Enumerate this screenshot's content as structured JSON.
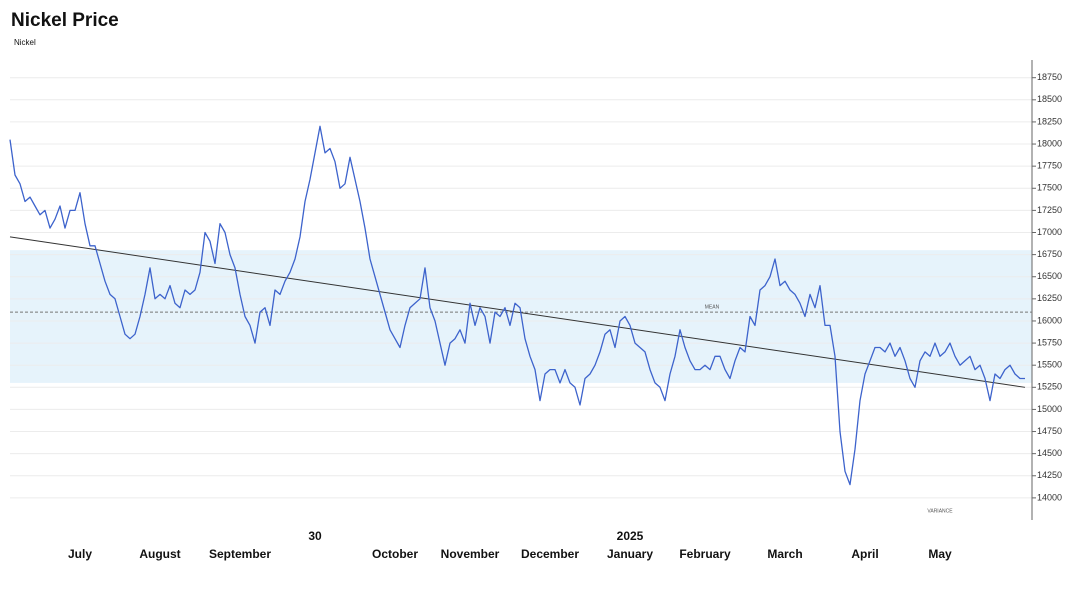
{
  "chart_data": {
    "type": "line",
    "title": "Nickel Price",
    "series": [
      {
        "name": "Nickel",
        "color": "#3d63cc",
        "values": [
          18050,
          17650,
          17550,
          17350,
          17400,
          17300,
          17200,
          17250,
          17050,
          17150,
          17300,
          17050,
          17250,
          17250,
          17450,
          17100,
          16850,
          16850,
          16650,
          16450,
          16300,
          16250,
          16050,
          15850,
          15800,
          15850,
          16050,
          16300,
          16600,
          16250,
          16300,
          16250,
          16400,
          16200,
          16150,
          16350,
          16300,
          16350,
          16550,
          17000,
          16900,
          16650,
          17100,
          17000,
          16750,
          16600,
          16300,
          16050,
          15950,
          15750,
          16100,
          16150,
          15950,
          16350,
          16300,
          16450,
          16550,
          16700,
          16950,
          17350,
          17600,
          17900,
          18200,
          17900,
          17950,
          17800,
          17500,
          17550,
          17850,
          17600,
          17350,
          17050,
          16700,
          16500,
          16300,
          16100,
          15900,
          15800,
          15700,
          15950,
          16150,
          16200,
          16250,
          16600,
          16150,
          16000,
          15750,
          15500,
          15750,
          15800,
          15900,
          15750,
          16200,
          15950,
          16150,
          16050,
          15750,
          16100,
          16050,
          16150,
          15950,
          16200,
          16150,
          15800,
          15600,
          15450,
          15100,
          15400,
          15450,
          15450,
          15300,
          15450,
          15300,
          15250,
          15050,
          15350,
          15400,
          15500,
          15650,
          15850,
          15900,
          15700,
          16000,
          16050,
          15950,
          15750,
          15700,
          15650,
          15450,
          15300,
          15250,
          15100,
          15400,
          15600,
          15900,
          15700,
          15550,
          15450,
          15450,
          15500,
          15450,
          15600,
          15600,
          15450,
          15350,
          15550,
          15700,
          15650,
          16050,
          15950,
          16350,
          16400,
          16500,
          16700,
          16400,
          16450,
          16350,
          16300,
          16200,
          16050,
          16300,
          16150,
          16400,
          15950,
          15950,
          15600,
          14750,
          14300,
          14150,
          14550,
          15100,
          15400,
          15550,
          15700,
          15700,
          15650,
          15750,
          15600,
          15700,
          15550,
          15350,
          15250,
          15550,
          15650,
          15600,
          15750,
          15600,
          15650,
          15750,
          15600,
          15500,
          15550,
          15600,
          15450,
          15500,
          15350,
          15100,
          15400,
          15350,
          15450,
          15500,
          15400,
          15350,
          15350
        ]
      }
    ],
    "categories": [
      null,
      null,
      null,
      null,
      null,
      null,
      null,
      null,
      null,
      null,
      null,
      null,
      null,
      null,
      "July",
      null,
      null,
      null,
      null,
      null,
      null,
      null,
      null,
      null,
      null,
      null,
      null,
      null,
      null,
      null,
      "August",
      null,
      null,
      null,
      null,
      null,
      null,
      null,
      null,
      null,
      null,
      null,
      null,
      null,
      null,
      null,
      "September",
      null,
      null,
      null,
      null,
      null,
      null,
      null,
      null,
      null,
      null,
      null,
      null,
      null,
      null,
      null,
      null,
      null,
      null,
      null,
      null,
      null,
      null,
      null,
      null,
      null,
      null,
      null,
      null,
      null,
      null,
      "October",
      null,
      null,
      null,
      null,
      null,
      null,
      null,
      null,
      null,
      null,
      null,
      null,
      null,
      null,
      "November",
      null,
      null,
      null,
      null,
      null,
      null,
      null,
      null,
      null,
      null,
      null,
      null,
      null,
      null,
      null,
      "December",
      null,
      null,
      null,
      null,
      null,
      null,
      null,
      null,
      null,
      null,
      null,
      null,
      null,
      null,
      null,
      "January",
      null,
      null,
      null,
      null,
      null,
      null,
      null,
      null,
      null,
      null,
      null,
      null,
      null,
      null,
      "February",
      null,
      null,
      null,
      null,
      null,
      null,
      null,
      null,
      null,
      null,
      null,
      null,
      null,
      null,
      null,
      "March",
      null,
      null,
      null,
      null,
      null,
      null,
      null,
      null,
      null,
      null,
      null,
      null,
      null,
      null,
      null,
      "April",
      null,
      null,
      null,
      null,
      null,
      null,
      null,
      null,
      null,
      null,
      null,
      null,
      null,
      null,
      "May",
      null,
      null,
      null,
      null,
      null,
      null,
      null,
      null,
      null,
      null,
      null,
      null,
      null,
      null,
      null,
      null,
      null
    ],
    "upper_categories": [
      null,
      null,
      null,
      null,
      null,
      null,
      null,
      null,
      null,
      null,
      null,
      null,
      null,
      null,
      null,
      null,
      null,
      null,
      null,
      null,
      null,
      null,
      null,
      null,
      null,
      null,
      null,
      null,
      null,
      null,
      null,
      null,
      null,
      null,
      null,
      null,
      null,
      null,
      null,
      null,
      null,
      null,
      null,
      null,
      null,
      null,
      null,
      null,
      null,
      null,
      null,
      null,
      null,
      null,
      null,
      null,
      null,
      null,
      null,
      null,
      null,
      "30",
      null,
      null,
      null,
      null,
      null,
      null,
      null,
      null,
      null,
      null,
      null,
      null,
      null,
      null,
      null,
      null,
      null,
      null,
      null,
      null,
      null,
      null,
      null,
      null,
      null,
      null,
      null,
      null,
      null,
      null,
      null,
      null,
      null,
      null,
      null,
      null,
      null,
      null,
      null,
      null,
      null,
      null,
      null,
      null,
      null,
      null,
      null,
      null,
      null,
      null,
      null,
      null,
      null,
      null,
      null,
      null,
      null,
      null,
      null,
      null,
      null,
      null,
      "2025",
      null,
      null,
      null,
      null,
      null,
      null,
      null,
      null,
      null,
      null,
      null,
      null,
      null,
      null,
      null,
      null,
      null,
      null,
      null,
      null,
      null,
      null,
      null,
      null,
      null,
      null,
      null,
      null,
      null,
      null,
      null,
      null,
      null,
      null,
      null,
      null,
      null,
      null,
      null,
      null,
      null,
      null,
      null,
      null,
      null,
      null,
      null,
      null,
      null,
      null,
      null,
      null,
      null,
      null,
      null,
      null,
      null,
      null,
      null,
      null,
      null,
      null,
      null,
      null,
      null,
      null,
      null,
      null,
      null,
      null,
      null,
      null,
      null,
      null,
      null,
      null,
      null,
      null,
      null
    ],
    "ylim": [
      13750,
      18950
    ],
    "yticks": [
      14000,
      14250,
      14500,
      14750,
      15000,
      15250,
      15500,
      15750,
      16000,
      16250,
      16500,
      16750,
      17000,
      17250,
      17500,
      17750,
      18000,
      18250,
      18500,
      18750
    ],
    "grid": true,
    "band": [
      15300,
      16800
    ],
    "band_color": "#e6f3fb",
    "mean": {
      "value": 16100,
      "label": "MEAN"
    },
    "trend": [
      16950,
      15250
    ],
    "annotations": [
      "VARIANCE"
    ]
  }
}
